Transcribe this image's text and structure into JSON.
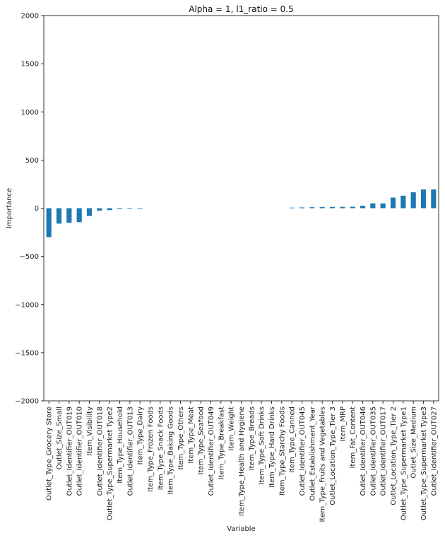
{
  "chart_data": {
    "type": "bar",
    "title": "Alpha = 1, l1_ratio = 0.5",
    "xlabel": "Variable",
    "ylabel": "Importance",
    "ylim": [
      -2000,
      2000
    ],
    "yticks": [
      -2000,
      -1500,
      -1000,
      -500,
      0,
      500,
      1000,
      1500,
      2000
    ],
    "grid": false,
    "bar_color": "#1f77b4",
    "categories": [
      "Outlet_Type_Grocery Store",
      "Outlet_Size_Small",
      "Outlet_Identifier_OUT019",
      "Outlet_Identifier_OUT010",
      "Item_Visibility",
      "Outlet_Identifier_OUT018",
      "Outlet_Type_Supermarket Type2",
      "Item_Type_Household",
      "Outlet_Identifier_OUT013",
      "Item_Type_Dairy",
      "Item_Type_Frozen Foods",
      "Item_Type_Snack Foods",
      "Item_Type_Baking Goods",
      "Item_Type_Others",
      "Item_Type_Meat",
      "Item_Type_Seafood",
      "Outlet_Identifier_OUT049",
      "Item_Type_Breakfast",
      "Item_Weight",
      "Item_Type_Health and Hygiene",
      "Item_Type_Breads",
      "Item_Type_Soft Drinks",
      "Item_Type_Hard Drinks",
      "Item_Type_Starchy Foods",
      "Item_Type_Canned",
      "Outlet_Identifier_OUT045",
      "Outlet_Establishment_Year",
      "Item_Type_Fruits and Vegetables",
      "Outlet_Location_Type_Tier 3",
      "Item_MRP",
      "Item_Fat_Content",
      "Outlet_Identifier_OUT046",
      "Outlet_Identifier_OUT035",
      "Outlet_Identifier_OUT017",
      "Outlet_Location_Type_Tier 2",
      "Outlet_Type_Supermarket Type1",
      "Outlet_Size_Medium",
      "Outlet_Type_Supermarket Type3",
      "Outlet_Identifier_OUT027"
    ],
    "values": [
      -300,
      -160,
      -150,
      -145,
      -80,
      -25,
      -20,
      -8,
      -6,
      -5,
      0,
      0,
      0,
      0,
      0,
      0,
      0,
      0,
      0,
      0,
      0,
      0,
      0,
      0,
      6,
      8,
      10,
      12,
      13,
      14,
      15,
      25,
      50,
      50,
      110,
      130,
      165,
      195,
      195
    ]
  }
}
